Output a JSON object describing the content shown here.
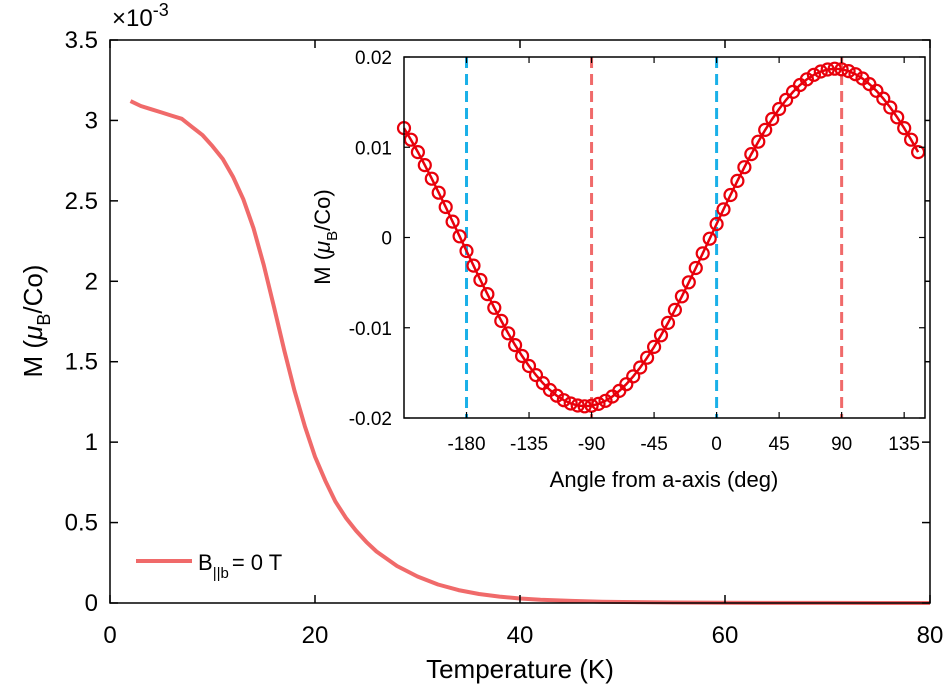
{
  "chart_data": [
    {
      "type": "line",
      "xlabel": "Temperature (K)",
      "ylabel_main": "M (",
      "ylabel_mu": "μ",
      "ylabel_sub": "B",
      "ylabel_tail": "/Co)",
      "exponent_prefix": "×10",
      "exponent_power": "-3",
      "xlim": [
        0,
        80
      ],
      "ylim": [
        0,
        3.5
      ],
      "xticks": [
        0,
        20,
        40,
        60,
        80
      ],
      "xtick_labels": [
        "0",
        "20",
        "40",
        "60",
        "80"
      ],
      "yticks": [
        0,
        0.5,
        1,
        1.5,
        2,
        2.5,
        3,
        3.5
      ],
      "ytick_labels": [
        "0",
        "0.5",
        "1",
        "1.5",
        "2",
        "2.5",
        "3",
        "3.5"
      ],
      "grid": false,
      "legend_position": "bottom-left",
      "series": [
        {
          "name": "B||b = 0 T",
          "legend_main": "B",
          "legend_sub": "||b",
          "legend_tail": "= 0 T",
          "color": "#f06a6a",
          "x": [
            2,
            3,
            4,
            5,
            6,
            7,
            8,
            9,
            10,
            11,
            12,
            13,
            14,
            15,
            16,
            17,
            18,
            19,
            20,
            21,
            22,
            23,
            24,
            25,
            26,
            28,
            30,
            32,
            34,
            36,
            38,
            40,
            42,
            45,
            48,
            50,
            55,
            60,
            65,
            70,
            75,
            80
          ],
          "y": [
            3.12,
            3.09,
            3.07,
            3.05,
            3.03,
            3.01,
            2.96,
            2.91,
            2.84,
            2.76,
            2.65,
            2.51,
            2.33,
            2.1,
            1.84,
            1.57,
            1.32,
            1.1,
            0.91,
            0.76,
            0.63,
            0.53,
            0.45,
            0.38,
            0.32,
            0.23,
            0.165,
            0.115,
            0.08,
            0.056,
            0.04,
            0.028,
            0.02,
            0.013,
            0.008,
            0.006,
            0.003,
            0.0015,
            0.0008,
            0.0004,
            0.0002,
            0.0001
          ]
        }
      ]
    },
    {
      "type": "line",
      "inset": true,
      "xlabel": "Angle from a-axis (deg)",
      "ylabel_main": "M (",
      "ylabel_mu": "μ",
      "ylabel_sub": "B",
      "ylabel_tail": "/Co)",
      "xlim": [
        -225,
        150
      ],
      "ylim": [
        -0.02,
        0.02
      ],
      "xticks": [
        -180,
        -135,
        -90,
        -45,
        0,
        45,
        90,
        135
      ],
      "xtick_labels": [
        "-180",
        "-135",
        "-90",
        "-45",
        "0",
        "45",
        "90",
        "135"
      ],
      "yticks": [
        -0.02,
        -0.01,
        0,
        0.01,
        0.02
      ],
      "ytick_labels": [
        "-0.02",
        "-0.01",
        "0",
        "0.01",
        "0.02"
      ],
      "function_note": "M = 0.0187 sin(theta + 0.08 rad)",
      "amplitude": 0.0187,
      "phase_deg": 4.6,
      "angle_start": -225,
      "angle_end": 145,
      "angle_step": 5,
      "marker_color": "#e8000b",
      "line_color": "#e8000b",
      "dashed_lines": [
        {
          "x": -180,
          "color": "#1ab0e8"
        },
        {
          "x": 0,
          "color": "#1ab0e8"
        },
        {
          "x": -90,
          "color": "#f06a6a"
        },
        {
          "x": 90,
          "color": "#f06a6a"
        }
      ]
    }
  ]
}
